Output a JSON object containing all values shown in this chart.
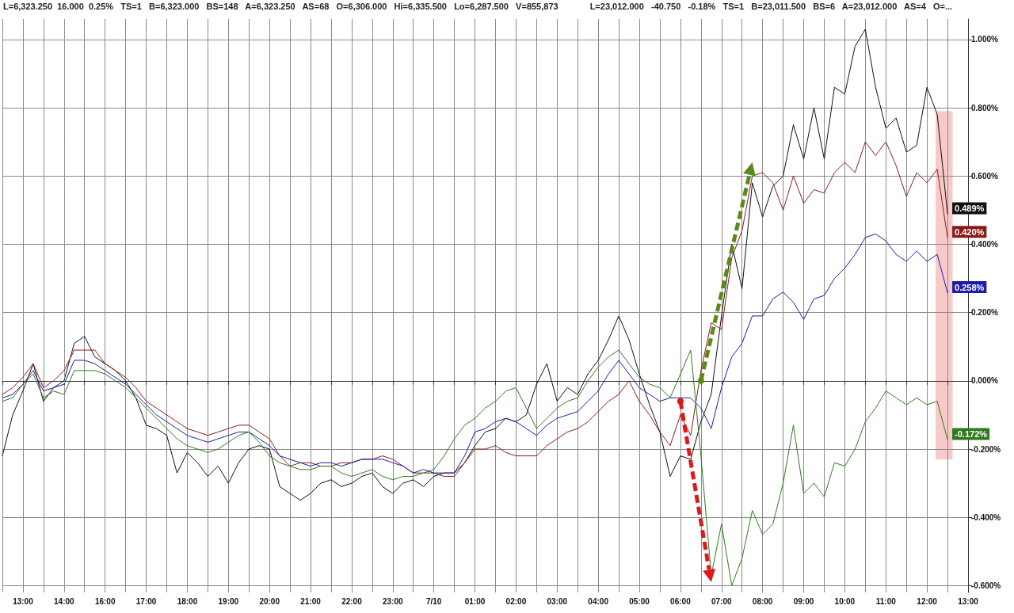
{
  "chart_data": {
    "type": "line",
    "annotations": [
      "L=6,323.250  16.000  0.25%   TS=1   B=6,323.000   BS=148   A=6,323.250   AS=68   O=6,306.000   Hi=6,335.500   Lo=6,287.500   V=855,873",
      "L=23,012.000   -40.750   -0.18%   TS=1   B=23,011.500   BS=6   A=23,012.000   AS=4   O=..."
    ],
    "categories": [
      null,
      null,
      "13:00",
      null,
      null,
      null,
      "14:00",
      null,
      null,
      null,
      "16:00",
      null,
      null,
      null,
      "17:00",
      null,
      null,
      null,
      "18:00",
      null,
      null,
      null,
      "19:00",
      null,
      null,
      null,
      "20:00",
      null,
      null,
      null,
      "21:00",
      null,
      null,
      null,
      "22:00",
      null,
      null,
      null,
      "23:00",
      null,
      null,
      null,
      "7/10",
      null,
      null,
      null,
      "01:00",
      null,
      null,
      null,
      "02:00",
      null,
      null,
      null,
      "03:00",
      null,
      null,
      null,
      "04:00",
      null,
      null,
      null,
      "05:00",
      null,
      null,
      null,
      "06:00",
      null,
      null,
      null,
      "07:00",
      null,
      null,
      null,
      "08:00",
      null,
      null,
      null,
      "09:00",
      null,
      null,
      null,
      "10:00",
      null,
      null,
      null,
      "11:00",
      null,
      null,
      null,
      "12:00",
      null,
      null,
      null,
      "13:00"
    ],
    "series": [
      {
        "color": "#111111",
        "values": [
          -0.22,
          -0.1,
          -0.03,
          0.05,
          -0.06,
          -0.02,
          0.0,
          0.11,
          0.13,
          0.07,
          0.05,
          0.03,
          0.0,
          -0.05,
          -0.13,
          -0.14,
          -0.16,
          -0.27,
          -0.21,
          -0.24,
          -0.28,
          -0.25,
          -0.3,
          -0.24,
          -0.2,
          -0.19,
          -0.2,
          -0.31,
          -0.33,
          -0.35,
          -0.33,
          -0.3,
          -0.29,
          -0.31,
          -0.3,
          -0.28,
          -0.27,
          -0.31,
          -0.33,
          -0.3,
          -0.29,
          -0.31,
          -0.28,
          -0.27,
          -0.27,
          -0.24,
          -0.19,
          -0.15,
          -0.14,
          -0.11,
          -0.12,
          -0.1,
          -0.01,
          0.05,
          -0.06,
          -0.02,
          -0.04,
          0.02,
          0.06,
          0.12,
          0.19,
          0.12,
          0.02,
          -0.07,
          -0.15,
          -0.28,
          -0.22,
          -0.23,
          -0.12,
          -0.04,
          0.19,
          0.4,
          0.27,
          0.58,
          0.48,
          0.57,
          0.6,
          0.75,
          0.65,
          0.8,
          0.65,
          0.86,
          0.84,
          0.98,
          1.03,
          0.86,
          0.74,
          0.77,
          0.67,
          0.69,
          0.86,
          0.78,
          0.489,
          null,
          null
        ],
        "value_labels": [
          null,
          null,
          null,
          null,
          null,
          null,
          null,
          null,
          null,
          null,
          null,
          null,
          null,
          null,
          null,
          null,
          null,
          null,
          null,
          null,
          null,
          null,
          null,
          null,
          null,
          null,
          null,
          null,
          null,
          null,
          null,
          null,
          null,
          null,
          null,
          null,
          null,
          null,
          null,
          null,
          null,
          null,
          null,
          null,
          null,
          null,
          null,
          null,
          null,
          null,
          null,
          null,
          null,
          null,
          null,
          null,
          null,
          null,
          null,
          null,
          null,
          null,
          null,
          null,
          null,
          null,
          null,
          null,
          null,
          null,
          null,
          null,
          null,
          null,
          null,
          null,
          null,
          null,
          null,
          null,
          null,
          null,
          null,
          null,
          null,
          null,
          null,
          null,
          null,
          null,
          null,
          null,
          "0.489%",
          null,
          null
        ]
      },
      {
        "color": "#8b1c1c",
        "values": [
          -0.04,
          -0.02,
          0.01,
          0.05,
          -0.02,
          0.0,
          0.03,
          0.09,
          0.09,
          0.09,
          0.05,
          0.03,
          0.01,
          -0.02,
          -0.06,
          -0.08,
          -0.1,
          -0.12,
          -0.14,
          -0.15,
          -0.16,
          -0.15,
          -0.14,
          -0.13,
          -0.13,
          -0.15,
          -0.17,
          -0.22,
          -0.25,
          -0.24,
          -0.24,
          -0.25,
          -0.25,
          -0.24,
          -0.24,
          -0.23,
          -0.23,
          -0.22,
          -0.23,
          -0.25,
          -0.27,
          -0.27,
          -0.27,
          -0.28,
          -0.28,
          -0.24,
          -0.2,
          -0.2,
          -0.19,
          -0.21,
          -0.22,
          -0.22,
          -0.22,
          -0.19,
          -0.17,
          -0.15,
          -0.14,
          -0.12,
          -0.09,
          -0.06,
          -0.04,
          0.0,
          -0.06,
          -0.1,
          -0.15,
          -0.19,
          -0.1,
          -0.16,
          0.03,
          0.17,
          0.15,
          0.36,
          0.44,
          0.6,
          0.61,
          0.58,
          0.5,
          0.6,
          0.52,
          0.56,
          0.55,
          0.61,
          0.64,
          0.61,
          0.7,
          0.66,
          0.7,
          0.63,
          0.54,
          0.61,
          0.58,
          0.62,
          0.42,
          null,
          null
        ],
        "value_labels": [
          null,
          null,
          null,
          null,
          null,
          null,
          null,
          null,
          null,
          null,
          null,
          null,
          null,
          null,
          null,
          null,
          null,
          null,
          null,
          null,
          null,
          null,
          null,
          null,
          null,
          null,
          null,
          null,
          null,
          null,
          null,
          null,
          null,
          null,
          null,
          null,
          null,
          null,
          null,
          null,
          null,
          null,
          null,
          null,
          null,
          null,
          null,
          null,
          null,
          null,
          null,
          null,
          null,
          null,
          null,
          null,
          null,
          null,
          null,
          null,
          null,
          null,
          null,
          null,
          null,
          null,
          null,
          null,
          null,
          null,
          null,
          null,
          null,
          null,
          null,
          null,
          null,
          null,
          null,
          null,
          null,
          null,
          null,
          null,
          null,
          null,
          null,
          null,
          null,
          null,
          null,
          null,
          "0.420%",
          null,
          null
        ]
      },
      {
        "color": "#1c1ca8",
        "values": [
          -0.05,
          -0.04,
          -0.01,
          0.03,
          -0.03,
          -0.02,
          -0.01,
          0.06,
          0.06,
          0.05,
          0.03,
          0.01,
          -0.01,
          -0.04,
          -0.07,
          -0.1,
          -0.12,
          -0.14,
          -0.16,
          -0.17,
          -0.18,
          -0.17,
          -0.16,
          -0.15,
          -0.15,
          -0.17,
          -0.19,
          -0.22,
          -0.23,
          -0.24,
          -0.25,
          -0.24,
          -0.24,
          -0.25,
          -0.24,
          -0.23,
          -0.23,
          -0.23,
          -0.24,
          -0.25,
          -0.27,
          -0.26,
          -0.27,
          -0.27,
          -0.27,
          -0.22,
          -0.15,
          -0.14,
          -0.12,
          -0.11,
          -0.12,
          -0.14,
          -0.16,
          -0.13,
          -0.11,
          -0.1,
          -0.09,
          -0.06,
          -0.03,
          0.02,
          0.06,
          0.02,
          -0.02,
          -0.04,
          -0.06,
          -0.05,
          -0.05,
          -0.05,
          -0.08,
          -0.14,
          -0.02,
          0.07,
          0.11,
          0.19,
          0.19,
          0.24,
          0.26,
          0.23,
          0.18,
          0.24,
          0.25,
          0.3,
          0.33,
          0.37,
          0.42,
          0.43,
          0.41,
          0.37,
          0.35,
          0.38,
          0.35,
          0.37,
          0.258,
          null,
          null
        ],
        "value_labels": [
          null,
          null,
          null,
          null,
          null,
          null,
          null,
          null,
          null,
          null,
          null,
          null,
          null,
          null,
          null,
          null,
          null,
          null,
          null,
          null,
          null,
          null,
          null,
          null,
          null,
          null,
          null,
          null,
          null,
          null,
          null,
          null,
          null,
          null,
          null,
          null,
          null,
          null,
          null,
          null,
          null,
          null,
          null,
          null,
          null,
          null,
          null,
          null,
          null,
          null,
          null,
          null,
          null,
          null,
          null,
          null,
          null,
          null,
          null,
          null,
          null,
          null,
          null,
          null,
          null,
          null,
          null,
          null,
          null,
          null,
          null,
          null,
          null,
          null,
          null,
          null,
          null,
          null,
          null,
          null,
          null,
          null,
          null,
          null,
          null,
          null,
          null,
          null,
          null,
          null,
          null,
          null,
          "0.258%",
          null,
          null
        ]
      },
      {
        "color": "#2e7a1e",
        "values": [
          -0.06,
          -0.05,
          -0.01,
          0.02,
          -0.05,
          -0.03,
          -0.04,
          0.03,
          0.03,
          0.03,
          0.02,
          0.0,
          -0.02,
          -0.05,
          -0.08,
          -0.11,
          -0.14,
          -0.17,
          -0.19,
          -0.2,
          -0.21,
          -0.2,
          -0.18,
          -0.16,
          -0.15,
          -0.18,
          -0.22,
          -0.24,
          -0.25,
          -0.26,
          -0.26,
          -0.25,
          -0.25,
          -0.27,
          -0.28,
          -0.27,
          -0.26,
          -0.28,
          -0.29,
          -0.28,
          -0.28,
          -0.27,
          -0.26,
          -0.22,
          -0.17,
          -0.13,
          -0.11,
          -0.08,
          -0.06,
          -0.03,
          -0.02,
          -0.08,
          -0.14,
          -0.11,
          -0.08,
          -0.06,
          -0.05,
          0.0,
          0.04,
          0.07,
          0.09,
          0.05,
          0.01,
          -0.01,
          -0.02,
          -0.05,
          0.02,
          0.09,
          -0.22,
          -0.57,
          -0.42,
          -0.6,
          -0.52,
          -0.38,
          -0.45,
          -0.42,
          -0.3,
          -0.13,
          -0.33,
          -0.3,
          -0.34,
          -0.24,
          -0.25,
          -0.2,
          -0.12,
          -0.08,
          -0.03,
          -0.05,
          -0.07,
          -0.05,
          -0.07,
          -0.06,
          -0.172,
          null,
          null
        ],
        "value_labels": [
          null,
          null,
          null,
          null,
          null,
          null,
          null,
          null,
          null,
          null,
          null,
          null,
          null,
          null,
          null,
          null,
          null,
          null,
          null,
          null,
          null,
          null,
          null,
          null,
          null,
          null,
          null,
          null,
          null,
          null,
          null,
          null,
          null,
          null,
          null,
          null,
          null,
          null,
          null,
          null,
          null,
          null,
          null,
          null,
          null,
          null,
          null,
          null,
          null,
          null,
          null,
          null,
          null,
          null,
          null,
          null,
          null,
          null,
          null,
          null,
          null,
          null,
          null,
          null,
          null,
          null,
          null,
          null,
          null,
          null,
          null,
          null,
          null,
          null,
          null,
          null,
          null,
          null,
          null,
          null,
          null,
          null,
          null,
          null,
          null,
          null,
          null,
          null,
          null,
          null,
          null,
          null,
          "-0.172%",
          null,
          null
        ]
      }
    ],
    "ylim": [
      -0.62,
      1.06
    ],
    "yticks": [
      {
        "value": -0.6,
        "label": "-0.600%"
      },
      {
        "value": -0.4,
        "label": "-0.400%"
      },
      {
        "value": -0.2,
        "label": "-0.200%"
      },
      {
        "value": 0,
        "label": "0.000%"
      },
      {
        "value": 0.2,
        "label": "0.200%"
      },
      {
        "value": 0.4,
        "label": "0.400%"
      },
      {
        "value": 0.6,
        "label": "0.600%"
      },
      {
        "value": 0.8,
        "label": "0.800%"
      },
      {
        "value": 1,
        "label": "1.000%"
      }
    ],
    "ref_lines": [
      {
        "axis": "x",
        "value": "14:00",
        "label": null,
        "color": "#999999",
        "line_style": "dashed"
      }
    ],
    "grid": true,
    "marker": "none",
    "line_style": "solid"
  }
}
